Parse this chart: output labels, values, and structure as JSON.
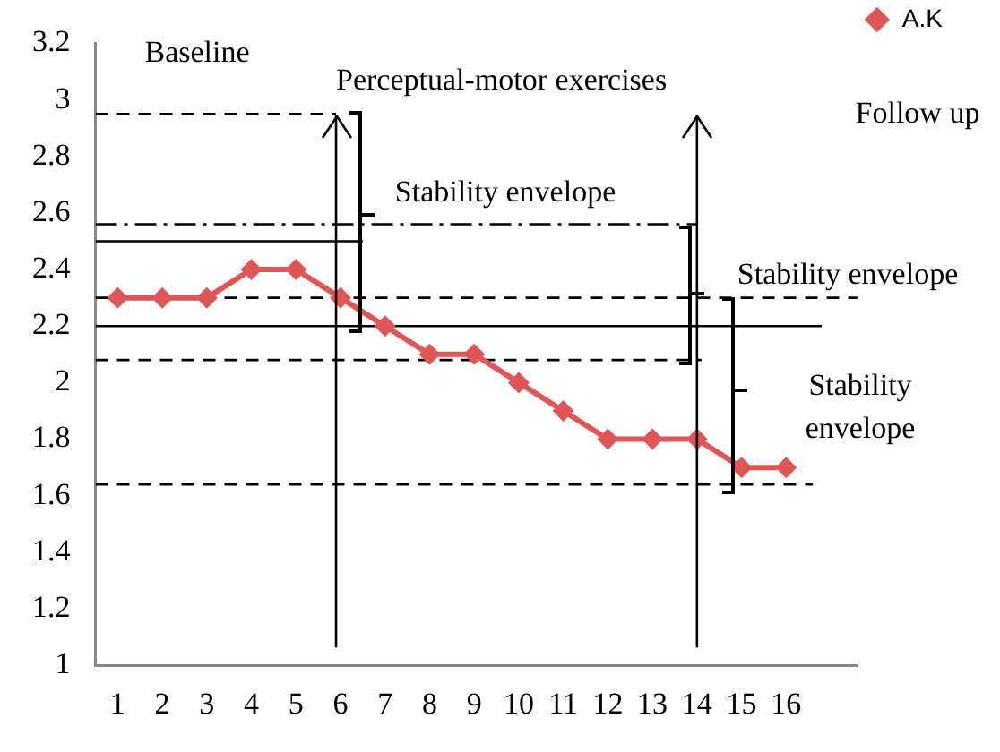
{
  "chart_data": {
    "type": "line",
    "x": [
      1,
      2,
      3,
      4,
      5,
      6,
      7,
      8,
      9,
      10,
      11,
      12,
      13,
      14,
      15,
      16
    ],
    "xlim": [
      0.5,
      17.6
    ],
    "xticks": [
      1,
      2,
      3,
      4,
      5,
      6,
      7,
      8,
      9,
      10,
      11,
      12,
      13,
      14,
      15,
      16
    ],
    "ylim": [
      1,
      3.2
    ],
    "yticks": [
      1,
      1.2,
      1.4,
      1.6,
      1.8,
      2,
      2.2,
      2.4,
      2.6,
      2.8,
      3,
      3.2
    ],
    "grid": false,
    "legend": "top right",
    "marker": "diamond",
    "line_style": "solid",
    "series": [
      {
        "name": "A.K",
        "color": "#e05555",
        "values": [
          2.3,
          2.3,
          2.3,
          2.4,
          2.4,
          2.3,
          2.2,
          2.1,
          2.1,
          2.0,
          1.9,
          1.8,
          1.8,
          1.8,
          1.7,
          1.7
        ]
      },
      {
        "type": "line",
        "x": [
          0.5,
          5.9
        ],
        "values": [
          2.95,
          2.95
        ],
        "color": "#000000",
        "line_style": "dashed",
        "marker": "none"
      },
      {
        "type": "line",
        "x": [
          0.5,
          14
        ],
        "values": [
          2.56,
          2.56
        ],
        "color": "#000000",
        "line_style": "dashdot",
        "marker": "none"
      },
      {
        "type": "line",
        "x": [
          0.5,
          6.5
        ],
        "values": [
          2.5,
          2.5
        ],
        "color": "#000000",
        "line_style": "solid",
        "marker": "none"
      },
      {
        "type": "line",
        "x": [
          0.5,
          17.6
        ],
        "values": [
          2.3,
          2.3
        ],
        "color": "#000000",
        "line_style": "dashed",
        "marker": "none"
      },
      {
        "type": "line",
        "x": [
          0.5,
          16.8
        ],
        "values": [
          2.2,
          2.2
        ],
        "color": "#000000",
        "line_style": "solid",
        "marker": "none"
      },
      {
        "type": "line",
        "x": [
          0.5,
          14.1
        ],
        "values": [
          2.08,
          2.08
        ],
        "color": "#000000",
        "line_style": "dashed",
        "marker": "none"
      },
      {
        "type": "line",
        "x": [
          0.5,
          16.6
        ],
        "values": [
          1.64,
          1.64
        ],
        "color": "#000000",
        "line_style": "dashed",
        "marker": "none"
      }
    ],
    "ref_lines": [
      {
        "axis": "x",
        "value": 5.9,
        "color": "#000000"
      },
      {
        "axis": "x",
        "value": 14,
        "color": "#000000"
      }
    ],
    "annotations": [
      "Baseline",
      {
        "text": "Perceptual-motor exercises",
        "x": 5.9,
        "y": 2.95
      },
      "Follow up",
      "Stability envelope",
      "Stability envelope",
      "Stability envelope"
    ]
  }
}
